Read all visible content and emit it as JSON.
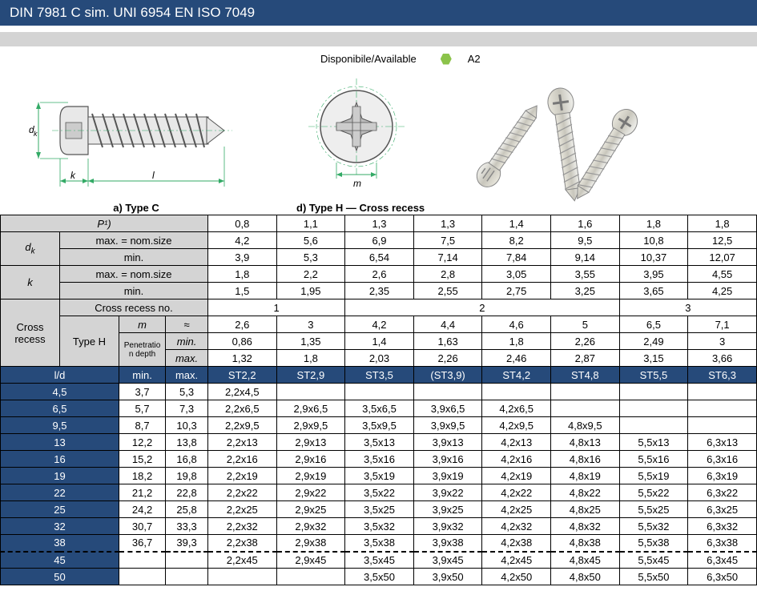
{
  "title": "DIN 7981 C sim. UNI 6954 EN ISO 7049",
  "available_label": "Disponibile/Available",
  "material_code": "A2",
  "diagram_a_label": "a)  Type C",
  "diagram_d_label": "d)  Type H — Cross recess",
  "dim_dk": "d",
  "dim_dk_sub": "k",
  "dim_k": "k",
  "dim_l": "l",
  "dim_m": "m",
  "p_label": "P¹)",
  "dk_label": "d",
  "dk_sub": "k",
  "k_label": "k",
  "max_nom": "max. = nom.size",
  "min_label": "min.",
  "max_label": "max.",
  "cross_recess": "Cross recess",
  "cross_recess_no": "Cross recess no.",
  "type_h": "Type H",
  "m_label": "m",
  "approx": "≈",
  "pen_depth": "Penetratio n depth",
  "ld_label": "l/d",
  "p_row": [
    "0,8",
    "1,1",
    "1,3",
    "1,3",
    "1,4",
    "1,6",
    "1,8",
    "1,8"
  ],
  "dk_max": [
    "4,2",
    "5,6",
    "6,9",
    "7,5",
    "8,2",
    "9,5",
    "10,8",
    "12,5"
  ],
  "dk_min": [
    "3,9",
    "5,3",
    "6,54",
    "7,14",
    "7,84",
    "9,14",
    "10,37",
    "12,07"
  ],
  "k_max": [
    "1,8",
    "2,2",
    "2,6",
    "2,8",
    "3,05",
    "3,55",
    "3,95",
    "4,55"
  ],
  "k_min": [
    "1,5",
    "1,95",
    "2,35",
    "2,55",
    "2,75",
    "3,25",
    "3,65",
    "4,25"
  ],
  "recess_no": [
    "1",
    "2",
    "3"
  ],
  "m_row": [
    "2,6",
    "3",
    "4,2",
    "4,4",
    "4,6",
    "5",
    "6,5",
    "7,1"
  ],
  "pd_min": [
    "0,86",
    "1,35",
    "1,4",
    "1,63",
    "1,8",
    "2,26",
    "2,49",
    "3"
  ],
  "pd_max": [
    "1,32",
    "1,8",
    "2,03",
    "2,26",
    "2,46",
    "2,87",
    "3,15",
    "3,66"
  ],
  "st_row": [
    "ST2,2",
    "ST2,9",
    "ST3,5",
    "(ST3,9)",
    "ST4,2",
    "ST4,8",
    "ST5,5",
    "ST6,3"
  ],
  "sizes": [
    {
      "ld": "4,5",
      "min": "3,7",
      "max": "5,3",
      "v": [
        "2,2x4,5",
        "",
        "",
        "",
        "",
        "",
        "",
        ""
      ]
    },
    {
      "ld": "6,5",
      "min": "5,7",
      "max": "7,3",
      "v": [
        "2,2x6,5",
        "2,9x6,5",
        "3,5x6,5",
        "3,9x6,5",
        "4,2x6,5",
        "",
        "",
        ""
      ]
    },
    {
      "ld": "9,5",
      "min": "8,7",
      "max": "10,3",
      "v": [
        "2,2x9,5",
        "2,9x9,5",
        "3,5x9,5",
        "3,9x9,5",
        "4,2x9,5",
        "4,8x9,5",
        "",
        ""
      ]
    },
    {
      "ld": "13",
      "min": "12,2",
      "max": "13,8",
      "v": [
        "2,2x13",
        "2,9x13",
        "3,5x13",
        "3,9x13",
        "4,2x13",
        "4,8x13",
        "5,5x13",
        "6,3x13"
      ]
    },
    {
      "ld": "16",
      "min": "15,2",
      "max": "16,8",
      "v": [
        "2,2x16",
        "2,9x16",
        "3,5x16",
        "3,9x16",
        "4,2x16",
        "4,8x16",
        "5,5x16",
        "6,3x16"
      ]
    },
    {
      "ld": "19",
      "min": "18,2",
      "max": "19,8",
      "v": [
        "2,2x19",
        "2,9x19",
        "3,5x19",
        "3,9x19",
        "4,2x19",
        "4,8x19",
        "5,5x19",
        "6,3x19"
      ]
    },
    {
      "ld": "22",
      "min": "21,2",
      "max": "22,8",
      "v": [
        "2,2x22",
        "2,9x22",
        "3,5x22",
        "3,9x22",
        "4,2x22",
        "4,8x22",
        "5,5x22",
        "6,3x22"
      ]
    },
    {
      "ld": "25",
      "min": "24,2",
      "max": "25,8",
      "v": [
        "2,2x25",
        "2,9x25",
        "3,5x25",
        "3,9x25",
        "4,2x25",
        "4,8x25",
        "5,5x25",
        "6,3x25"
      ]
    },
    {
      "ld": "32",
      "min": "30,7",
      "max": "33,3",
      "v": [
        "2,2x32",
        "2,9x32",
        "3,5x32",
        "3,9x32",
        "4,2x32",
        "4,8x32",
        "5,5x32",
        "6,3x32"
      ]
    },
    {
      "ld": "38",
      "min": "36,7",
      "max": "39,3",
      "v": [
        "2,2x38",
        "2,9x38",
        "3,5x38",
        "3,9x38",
        "4,2x38",
        "4,8x38",
        "5,5x38",
        "6,3x38"
      ]
    },
    {
      "ld": "45",
      "min": "",
      "max": "",
      "v": [
        "2,2x45",
        "2,9x45",
        "3,5x45",
        "3,9x45",
        "4,2x45",
        "4,8x45",
        "5,5x45",
        "6,3x45"
      ],
      "dashed": true
    },
    {
      "ld": "50",
      "min": "",
      "max": "",
      "v": [
        "",
        "",
        "3,5x50",
        "3,9x50",
        "4,2x50",
        "4,8x50",
        "5,5x50",
        "6,3x50"
      ]
    }
  ],
  "colors": {
    "header_blue": "#264a7a",
    "header_grey": "#d4d4d4",
    "hex_green": "#8bc34a"
  }
}
